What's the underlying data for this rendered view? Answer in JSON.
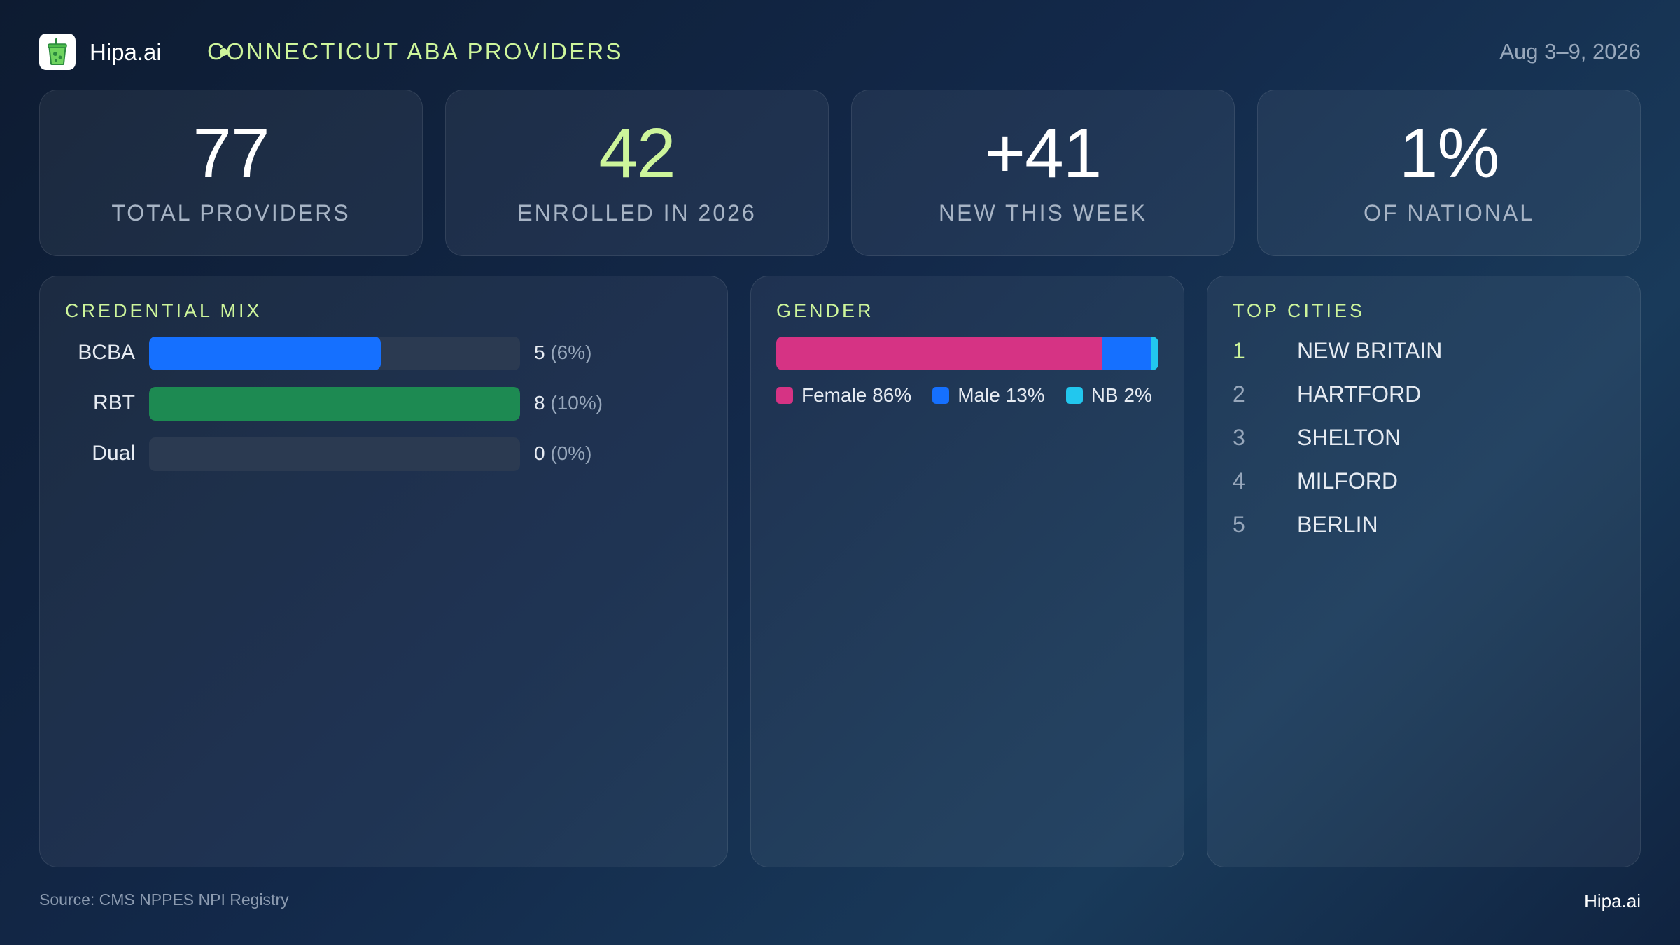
{
  "header": {
    "brand": "Hipa.ai",
    "title": "CONNECTICUT ABA PROVIDERS",
    "date_range": "Aug 3–9, 2026"
  },
  "kpis": [
    {
      "value": "77",
      "label": "TOTAL PROVIDERS",
      "accent": false
    },
    {
      "value": "42",
      "label": "ENROLLED IN 2026",
      "accent": true
    },
    {
      "value": "+41",
      "label": "NEW THIS WEEK",
      "accent": false
    },
    {
      "value": "1%",
      "label": "OF NATIONAL",
      "accent": false
    }
  ],
  "chart_data": [
    {
      "type": "bar",
      "title": "CREDENTIAL MIX",
      "categories": [
        "BCBA",
        "RBT",
        "Dual"
      ],
      "values": [
        5,
        8,
        0
      ],
      "value_labels": [
        "5",
        "8",
        "0"
      ],
      "percent_labels": [
        "(6%)",
        "(10%)",
        "(0%)"
      ],
      "scale_max": 8,
      "colors": [
        "#1570ff",
        "#1d8a52",
        "#2b3a51"
      ]
    },
    {
      "type": "bar",
      "title": "GENDER",
      "stacked": true,
      "categories": [
        "Female",
        "Male",
        "NB"
      ],
      "values": [
        86,
        13,
        2
      ],
      "legend_labels": [
        "Female 86%",
        "Male 13%",
        "NB 2%"
      ],
      "colors": [
        "#d63384",
        "#1570ff",
        "#22c7ee"
      ]
    }
  ],
  "top_cities": {
    "title": "TOP CITIES",
    "items": [
      {
        "rank": "1",
        "name": "NEW BRITAIN"
      },
      {
        "rank": "2",
        "name": "HARTFORD"
      },
      {
        "rank": "3",
        "name": "SHELTON"
      },
      {
        "rank": "4",
        "name": "MILFORD"
      },
      {
        "rank": "5",
        "name": "BERLIN"
      }
    ]
  },
  "footer": {
    "source": "Source: CMS NPPES NPI Registry",
    "brand": "Hipa.ai"
  }
}
